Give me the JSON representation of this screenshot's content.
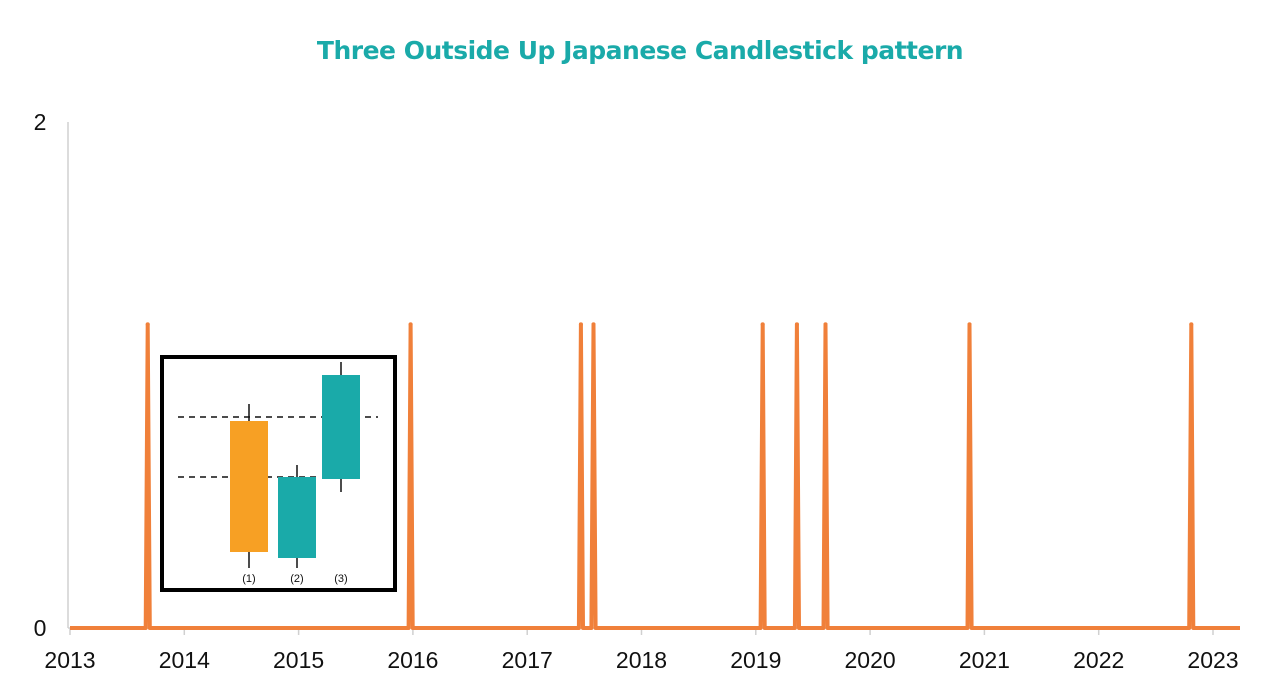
{
  "chart_data": {
    "type": "line",
    "title": "Three Outside Up Japanese Candlestick pattern",
    "xlabel": "",
    "ylabel": "",
    "x_ticks": [
      "2013",
      "2014",
      "2015",
      "2016",
      "2017",
      "2018",
      "2019",
      "2020",
      "2021",
      "2022",
      "2023"
    ],
    "y_ticks": [
      "0",
      "2"
    ],
    "xlim": [
      2013,
      2023.1
    ],
    "ylim": [
      0,
      2
    ],
    "series": [
      {
        "signal_dates": [
          2013.68,
          2015.98,
          2017.47,
          2017.58,
          2019.06,
          2019.36,
          2019.61,
          2020.87,
          2022.81
        ],
        "signal_value": 1.2,
        "baseline_value": 0
      }
    ],
    "grid": false,
    "legend": "none",
    "inset": {
      "labels": [
        "(1)",
        "(2)",
        "(3)"
      ]
    },
    "colors": {
      "title": "#1aaaa9",
      "line": "#f0803a",
      "axis": "#d0d0d0",
      "candle_bear": "#f7a024",
      "candle_bull": "#1aaaa9",
      "inset_border": "#000000"
    }
  }
}
